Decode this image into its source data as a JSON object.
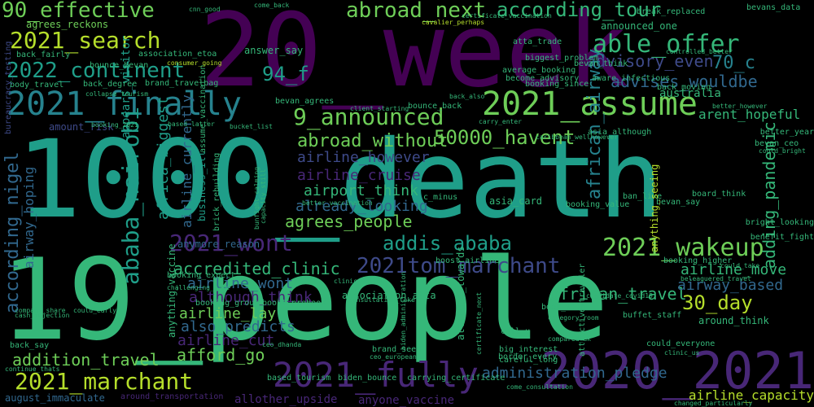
{
  "colors": {
    "background": "#000000",
    "palette": [
      "#440154",
      "#482777",
      "#3e4a89",
      "#31688e",
      "#26828e",
      "#1f9e89",
      "#35b779",
      "#6ece58",
      "#b5de2b",
      "#fde725"
    ]
  },
  "words": [
    {
      "text": "20_week",
      "color": "#440154"
    },
    {
      "text": "1000_death",
      "color": "#1f9e89"
    },
    {
      "text": "19_people",
      "color": "#35b779"
    },
    {
      "text": "2020_2021",
      "color": "#482777"
    },
    {
      "text": "2021_fully",
      "color": "#482777"
    },
    {
      "text": "2021_finally",
      "color": "#26828e"
    },
    {
      "text": "2021_assume",
      "color": "#6ece58"
    },
    {
      "text": "2021_search",
      "color": "#b5de2b"
    },
    {
      "text": "90_effective",
      "color": "#6ece58"
    },
    {
      "text": "2021_marchant",
      "color": "#b5de2b"
    },
    {
      "text": "2022_continent",
      "color": "#1f9e89"
    },
    {
      "text": "abroad_next",
      "color": "#6ece58"
    },
    {
      "text": "able_offer",
      "color": "#35b779"
    },
    {
      "text": "according_tour",
      "color": "#35b779"
    },
    {
      "text": "9_announced",
      "color": "#6ece58"
    },
    {
      "text": "2021_wont",
      "color": "#482777"
    },
    {
      "text": "2021_wakeup",
      "color": "#6ece58"
    },
    {
      "text": "2021tom_marchant",
      "color": "#3e4a89"
    },
    {
      "text": "addis_ababa",
      "color": "#1f9e89"
    },
    {
      "text": "50000_havent",
      "color": "#6ece58"
    },
    {
      "text": "abroad_without",
      "color": "#6ece58"
    },
    {
      "text": "94_f",
      "color": "#1f9e89"
    },
    {
      "text": "70_c",
      "color": "#26828e"
    },
    {
      "text": "advisory_even",
      "color": "#3e4a89"
    },
    {
      "text": "advises_wouldbe",
      "color": "#31688e"
    },
    {
      "text": "ababa_nairobi",
      "color": "#1f9e89"
    },
    {
      "text": "according_nigel",
      "color": "#31688e"
    },
    {
      "text": "30_day",
      "color": "#b5de2b"
    },
    {
      "text": "accredited_clinic",
      "color": "#35b779"
    },
    {
      "text": "african_travel",
      "color": "#35b779"
    },
    {
      "text": "addition_travel",
      "color": "#6ece58"
    },
    {
      "text": "afford_go",
      "color": "#6ece58"
    },
    {
      "text": "agrees_people",
      "color": "#6ece58"
    },
    {
      "text": "airline_however",
      "color": "#3e4a89"
    },
    {
      "text": "airline_cruise",
      "color": "#482777"
    },
    {
      "text": "airport_think",
      "color": "#35b779"
    },
    {
      "text": "already_looking",
      "color": "#31688e"
    },
    {
      "text": "airline_wont",
      "color": "#31688e"
    },
    {
      "text": "although_think",
      "color": "#482777"
    },
    {
      "text": "airline_lay",
      "color": "#6ece58"
    },
    {
      "text": "also_predicts",
      "color": "#31688e"
    },
    {
      "text": "airline_cut",
      "color": "#482777"
    },
    {
      "text": "administration_pledge",
      "color": "#31688e"
    },
    {
      "text": "airline_move",
      "color": "#35b779"
    },
    {
      "text": "airway_based",
      "color": "#31688e"
    },
    {
      "text": "adding_pandemic",
      "color": "#35b779"
    },
    {
      "text": "african_airway",
      "color": "#26828e"
    },
    {
      "text": "africa_biggest",
      "color": "#1f9e89"
    },
    {
      "text": "airline_currently",
      "color": "#31688e"
    },
    {
      "text": "airway_hoping",
      "color": "#31688e"
    },
    {
      "text": "anyone_vaccine",
      "color": "#482777"
    },
    {
      "text": "allother_upside",
      "color": "#482777"
    },
    {
      "text": "airline_capacity",
      "color": "#b5de2b"
    },
    {
      "text": "australia",
      "color": "#35b779"
    },
    {
      "text": "arent_hopeful",
      "color": "#35b779"
    },
    {
      "text": "agrees_reckons",
      "color": "#6ece58"
    },
    {
      "text": "association_etoa",
      "color": "#35b779"
    },
    {
      "text": "brand_travelbag",
      "color": "#35b779"
    },
    {
      "text": "appears_visitor",
      "color": "#1f9e89"
    },
    {
      "text": "answer_say",
      "color": "#35b779"
    },
    {
      "text": "biggest_problem",
      "color": "#35b779"
    },
    {
      "text": "become_advisory",
      "color": "#35b779"
    },
    {
      "text": "average_booking",
      "color": "#35b779"
    },
    {
      "text": "announced_one",
      "color": "#35b779"
    },
    {
      "text": "bevans_data",
      "color": "#35b779"
    },
    {
      "text": "bevan_think",
      "color": "#35b779"
    },
    {
      "text": "aware_infectious",
      "color": "#35b779"
    },
    {
      "text": "booking_since",
      "color": "#35b779"
    },
    {
      "text": "back_moving",
      "color": "#35b779"
    },
    {
      "text": "break_replaced",
      "color": "#35b779"
    },
    {
      "text": "atta_trade",
      "color": "#35b779"
    },
    {
      "text": "cavalier_perhaps",
      "color": "#b5de2b"
    },
    {
      "text": "certificate_vaccination",
      "color": "#35b779"
    },
    {
      "text": "amount_risk",
      "color": "#3e4a89"
    },
    {
      "text": "booking_2021",
      "color": "#35b779"
    },
    {
      "text": "based_latter",
      "color": "#35b779"
    },
    {
      "text": "bucket_list",
      "color": "#35b779"
    },
    {
      "text": "bevan_agrees",
      "color": "#35b779"
    },
    {
      "text": "bounce_back",
      "color": "#35b779"
    },
    {
      "text": "back_also",
      "color": "#35b779"
    },
    {
      "text": "client_starting",
      "color": "#35b779"
    },
    {
      "text": "carry_enter",
      "color": "#35b779"
    },
    {
      "text": "caribbean_wellhowever",
      "color": "#35b779"
    },
    {
      "text": "better_however",
      "color": "#35b779"
    },
    {
      "text": "better_year",
      "color": "#35b779"
    },
    {
      "text": "asia_although",
      "color": "#35b779"
    },
    {
      "text": "bevan_ceo",
      "color": "#35b779"
    },
    {
      "text": "could_bright",
      "color": "#35b779"
    },
    {
      "text": "business_ill",
      "color": "#1f9e89"
    },
    {
      "text": "brick_rebuilding",
      "color": "#35b779"
    },
    {
      "text": "bunfight_calming",
      "color": "#35b779"
    },
    {
      "text": "capacity_still",
      "color": "#35b779"
    },
    {
      "text": "better_vaccination",
      "color": "#35b779"
    },
    {
      "text": "c_minus",
      "color": "#35b779"
    },
    {
      "text": "asia_card",
      "color": "#35b779"
    },
    {
      "text": "booking_value",
      "color": "#35b779"
    },
    {
      "text": "ban_like",
      "color": "#35b779"
    },
    {
      "text": "bevan_say",
      "color": "#35b779"
    },
    {
      "text": "board_think",
      "color": "#35b779"
    },
    {
      "text": "anything_seeing",
      "color": "#b5de2b"
    },
    {
      "text": "bright_looking",
      "color": "#35b779"
    },
    {
      "text": "benefit_fight",
      "color": "#35b779"
    },
    {
      "text": "booking_higher",
      "color": "#35b779"
    },
    {
      "text": "anymore_reason",
      "color": "#31688e"
    },
    {
      "text": "boost_airline",
      "color": "#35b779"
    },
    {
      "text": "booking_expect",
      "color": "#35b779"
    },
    {
      "text": "anything_vaccine",
      "color": "#35b779"
    },
    {
      "text": "assume_vaccination",
      "color": "#35b779"
    },
    {
      "text": "association_atta",
      "color": "#35b779"
    },
    {
      "text": "attitude_towards",
      "color": "#35b779"
    },
    {
      "text": "beleaguered_travel",
      "color": "#35b779"
    },
    {
      "text": "could_take",
      "color": "#35b779"
    },
    {
      "text": "candidate_covid19",
      "color": "#35b779"
    },
    {
      "text": "buffet_staff",
      "color": "#35b779"
    },
    {
      "text": "around_think",
      "color": "#35b779"
    },
    {
      "text": "call_u",
      "color": "#35b779"
    },
    {
      "text": "big_interest",
      "color": "#35b779"
    },
    {
      "text": "border_every",
      "color": "#35b779"
    },
    {
      "text": "careful_long",
      "color": "#35b779"
    },
    {
      "text": "based_tourism",
      "color": "#35b779"
    },
    {
      "text": "biden_bounce",
      "color": "#35b779"
    },
    {
      "text": "carrying_certificate",
      "color": "#35b779"
    },
    {
      "text": "biden_administration",
      "color": "#35b779"
    },
    {
      "text": "brand_seen",
      "color": "#35b779"
    },
    {
      "text": "ceo_european",
      "color": "#35b779"
    },
    {
      "text": "attractive_traveler",
      "color": "#35b779"
    },
    {
      "text": "august_immaculate",
      "color": "#31688e"
    },
    {
      "text": "around_transportation",
      "color": "#482777"
    },
    {
      "text": "come_consultation",
      "color": "#35b779"
    },
    {
      "text": "changed_particularly",
      "color": "#35b779"
    },
    {
      "text": "body_travel",
      "color": "#35b779"
    },
    {
      "text": "back_degree",
      "color": "#35b779"
    },
    {
      "text": "bureaucracy_testing",
      "color": "#3e4a89"
    },
    {
      "text": "back_say",
      "color": "#35b779"
    },
    {
      "text": "continue_thats",
      "color": "#35b779"
    },
    {
      "text": "cash_injection",
      "color": "#35b779"
    },
    {
      "text": "company_share",
      "color": "#35b779"
    },
    {
      "text": "could_early",
      "color": "#35b779"
    },
    {
      "text": "cnn_good",
      "color": "#35b779"
    },
    {
      "text": "come_back",
      "color": "#35b779"
    },
    {
      "text": "consumer_going",
      "color": "#b5de2b"
    },
    {
      "text": "bounce_bevan",
      "color": "#35b779"
    },
    {
      "text": "back_fairly",
      "color": "#35b779"
    },
    {
      "text": "booking_group",
      "color": "#35b779"
    },
    {
      "text": "boost_prebook",
      "color": "#35b779"
    },
    {
      "text": "book_soon",
      "color": "#35b779"
    },
    {
      "text": "category_room",
      "color": "#35b779"
    },
    {
      "text": "compared_uk",
      "color": "#35b779"
    },
    {
      "text": "challenging_time",
      "color": "#35b779"
    },
    {
      "text": "clinic_yellow",
      "color": "#35b779"
    },
    {
      "text": "consultation_take",
      "color": "#35b779"
    },
    {
      "text": "could_everyone",
      "color": "#35b779"
    },
    {
      "text": "clinic_us",
      "color": "#35b779"
    },
    {
      "text": "ceo_dhanda",
      "color": "#35b779"
    },
    {
      "text": "collapse_tourism",
      "color": "#35b779"
    },
    {
      "text": "controlled_better",
      "color": "#35b779"
    },
    {
      "text": "certificate_next",
      "color": "#35b779"
    }
  ]
}
